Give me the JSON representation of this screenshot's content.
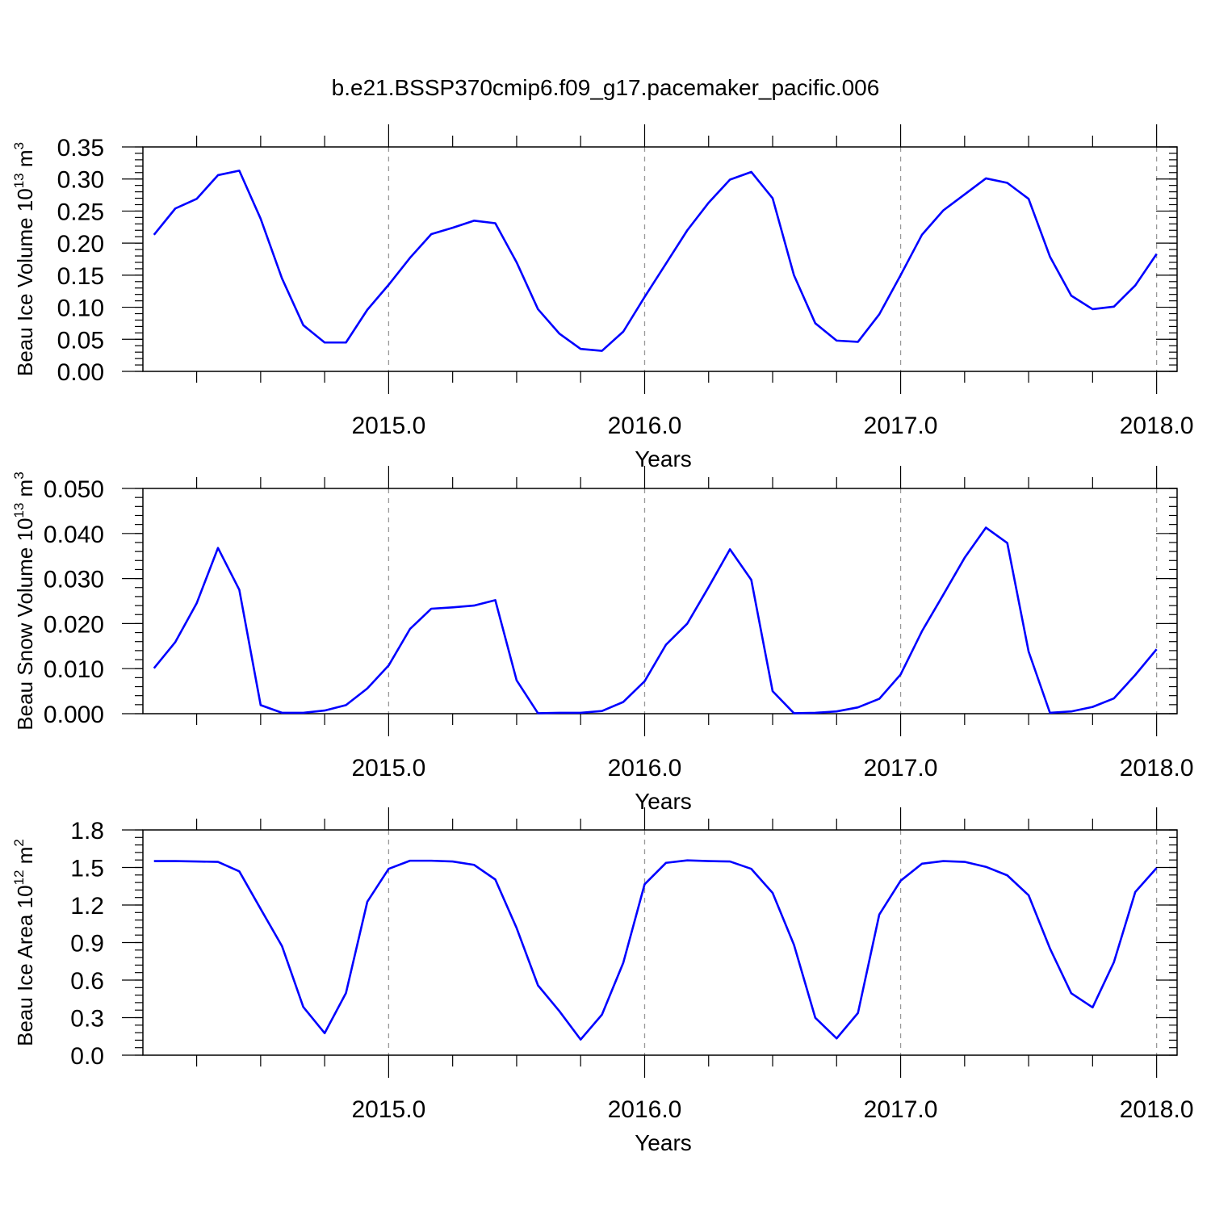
{
  "title": "b.e21.BSSP370cmip6.f09_g17.pacemaker_pacific.006",
  "colors": {
    "line": "#0000ff",
    "grid": "#999999",
    "axis": "#000000"
  },
  "chart_data": [
    {
      "type": "line",
      "ylabel": "Beau Ice Volume 10",
      "ylabel_exp": "13",
      "ylabel_unit": " m",
      "ylabel_unit_exp": "3",
      "xlabel": "Years",
      "xlim": [
        2014.04,
        2018.08
      ],
      "ylim": [
        0.0,
        0.35
      ],
      "x_ticks": [
        2015.0,
        2016.0,
        2017.0,
        2018.0
      ],
      "x_tick_labels": [
        "2015.0",
        "2016.0",
        "2017.0",
        "2018.0"
      ],
      "y_ticks": [
        0.0,
        0.05,
        0.1,
        0.15,
        0.2,
        0.25,
        0.3,
        0.35
      ],
      "y_tick_labels": [
        "0.00",
        "0.05",
        "0.10",
        "0.15",
        "0.20",
        "0.25",
        "0.30",
        "0.35"
      ],
      "y_minor_step": 0.01,
      "grid_x": true,
      "series": [
        {
          "x_start": 2014.0833,
          "x_step": 0.0833333,
          "values": [
            0.213,
            0.254,
            0.269,
            0.306,
            0.313,
            0.238,
            0.145,
            0.072,
            0.045,
            0.045,
            0.096,
            0.135,
            0.177,
            0.214,
            0.224,
            0.235,
            0.231,
            0.17,
            0.097,
            0.059,
            0.035,
            0.032,
            0.062,
            0.116,
            0.168,
            0.22,
            0.263,
            0.299,
            0.311,
            0.27,
            0.15,
            0.075,
            0.048,
            0.046,
            0.089,
            0.15,
            0.213,
            0.251,
            0.276,
            0.301,
            0.294,
            0.269,
            0.179,
            0.118,
            0.097,
            0.101,
            0.134,
            0.183
          ]
        }
      ]
    },
    {
      "type": "line",
      "ylabel": "Beau Snow Volume 10",
      "ylabel_exp": "13",
      "ylabel_unit": " m",
      "ylabel_unit_exp": "3",
      "xlabel": "Years",
      "xlim": [
        2014.04,
        2018.08
      ],
      "ylim": [
        0.0,
        0.05
      ],
      "x_ticks": [
        2015.0,
        2016.0,
        2017.0,
        2018.0
      ],
      "x_tick_labels": [
        "2015.0",
        "2016.0",
        "2017.0",
        "2018.0"
      ],
      "y_ticks": [
        0.0,
        0.01,
        0.02,
        0.03,
        0.04,
        0.05
      ],
      "y_tick_labels": [
        "0.000",
        "0.010",
        "0.020",
        "0.030",
        "0.040",
        "0.050"
      ],
      "y_minor_step": 0.002,
      "grid_x": true,
      "series": [
        {
          "x_start": 2014.0833,
          "x_step": 0.0833333,
          "values": [
            0.0101,
            0.0159,
            0.0245,
            0.0368,
            0.0275,
            0.0019,
            0.0002,
            0.0002,
            0.0007,
            0.0019,
            0.0056,
            0.0107,
            0.0188,
            0.0233,
            0.0236,
            0.024,
            0.0252,
            0.0074,
            0.0001,
            0.0002,
            0.0002,
            0.0006,
            0.0026,
            0.0072,
            0.0153,
            0.02,
            0.0281,
            0.0365,
            0.0297,
            0.005,
            0.0001,
            0.0002,
            0.0005,
            0.0014,
            0.0033,
            0.0087,
            0.0183,
            0.0264,
            0.0346,
            0.0413,
            0.0379,
            0.0138,
            0.0002,
            0.0005,
            0.0015,
            0.0034,
            0.0086,
            0.0143
          ]
        }
      ]
    },
    {
      "type": "line",
      "ylabel": "Beau Ice Area 10",
      "ylabel_exp": "12",
      "ylabel_unit": " m",
      "ylabel_unit_exp": "2",
      "xlabel": "Years",
      "xlim": [
        2014.04,
        2018.08
      ],
      "ylim": [
        0.0,
        1.8
      ],
      "x_ticks": [
        2015.0,
        2016.0,
        2017.0,
        2018.0
      ],
      "x_tick_labels": [
        "2015.0",
        "2016.0",
        "2017.0",
        "2018.0"
      ],
      "y_ticks": [
        0.0,
        0.3,
        0.6,
        0.9,
        1.2,
        1.5,
        1.8
      ],
      "y_tick_labels": [
        "0.0",
        "0.3",
        "0.6",
        "0.9",
        "1.2",
        "1.5",
        "1.8"
      ],
      "y_minor_step": 0.06,
      "grid_x": true,
      "series": [
        {
          "x_start": 2014.0833,
          "x_step": 0.0833333,
          "values": [
            1.551,
            1.551,
            1.548,
            1.545,
            1.469,
            1.169,
            0.872,
            0.385,
            0.176,
            0.497,
            1.226,
            1.489,
            1.554,
            1.554,
            1.548,
            1.521,
            1.404,
            1.016,
            0.558,
            0.353,
            0.125,
            0.324,
            0.739,
            1.366,
            1.537,
            1.557,
            1.551,
            1.548,
            1.489,
            1.297,
            0.882,
            0.299,
            0.134,
            0.337,
            1.124,
            1.394,
            1.53,
            1.551,
            1.545,
            1.505,
            1.437,
            1.278,
            0.853,
            0.495,
            0.382,
            0.744,
            1.304,
            1.496
          ]
        }
      ]
    }
  ]
}
